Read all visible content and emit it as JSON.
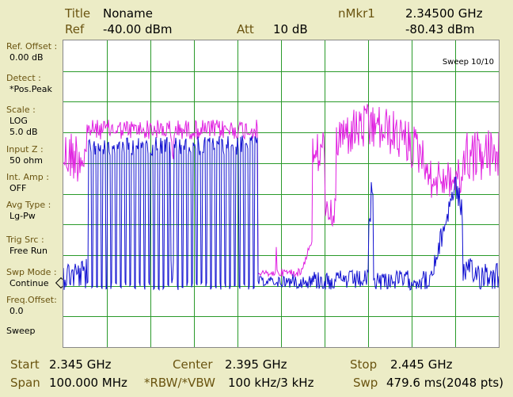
{
  "header": {
    "title_label": "Title",
    "title_value": "Noname",
    "ref_label": "Ref",
    "ref_value": "-40.00 dBm",
    "att_label": "Att",
    "att_value": "10 dB",
    "marker_label": "nMkr1",
    "marker_freq": "2.34500 GHz",
    "marker_level": "-80.43 dBm"
  },
  "sidebar": [
    {
      "label": "Ref. Offset :",
      "value": "0.00 dB"
    },
    {
      "label": "Detect :",
      "value": "*Pos.Peak"
    },
    {
      "label": "Scale :",
      "value": "LOG",
      "value2": "5.0 dB"
    },
    {
      "label": "Input Z :",
      "value": "50 ohm"
    },
    {
      "label": "Int. Amp :",
      "value": "OFF"
    },
    {
      "label": "Avg Type :",
      "value": "Lg-Pw"
    },
    {
      "label": "Trig Src :",
      "value": "Free Run"
    },
    {
      "label": "Swp Mode :",
      "value": "Continue"
    },
    {
      "label": "Freq.Offset:",
      "value": "0.0"
    },
    {
      "label": "Sweep",
      "value": ""
    }
  ],
  "plot": {
    "sweep_status": "Sweep 10/10",
    "trace_colors": {
      "max_hold": "#e020e0",
      "clear_write": "#1010d0",
      "grid": "#2a9a2a"
    }
  },
  "footer": {
    "start_label": "Start",
    "start_value": "2.345 GHz",
    "center_label": "Center",
    "center_value": "2.395 GHz",
    "stop_label": "Stop",
    "stop_value": "2.445 GHz",
    "span_label": "Span",
    "span_value": "100.000 MHz",
    "rbw_label": "*RBW/*VBW",
    "rbw_value": "100 kHz/3 kHz",
    "swp_label": "Swp",
    "swp_value": "479.6 ms(2048 pts)"
  }
}
